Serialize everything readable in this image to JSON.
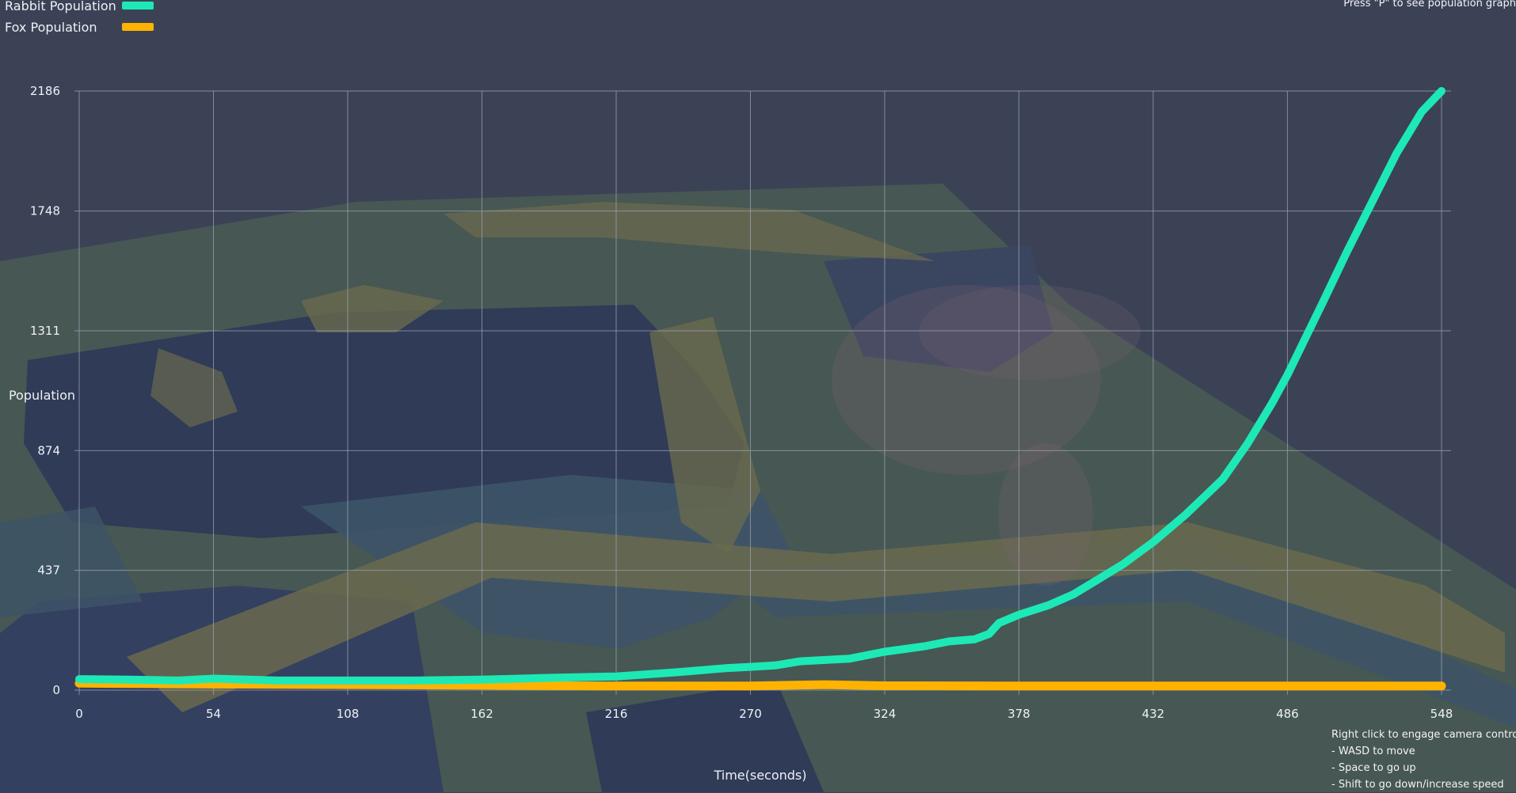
{
  "legend": [
    {
      "label": "Rabbit Population",
      "color": "#1de9b6"
    },
    {
      "label": "Fox Population",
      "color": "#ffb300"
    }
  ],
  "hint_top": "Press \"P\" to see population graph",
  "camera_help": [
    "Right click to engage camera controls",
    "- WASD to move",
    "- Space to go up",
    "- Shift to go down/increase speed"
  ],
  "chart_data": {
    "type": "line",
    "title": "",
    "xlabel": "Time(seconds)",
    "ylabel": "Population",
    "xlim": [
      0,
      548
    ],
    "ylim": [
      0,
      2186
    ],
    "x_ticks": [
      0,
      54,
      108,
      162,
      216,
      270,
      324,
      378,
      432,
      486,
      548
    ],
    "y_ticks": [
      0,
      437,
      874,
      1311,
      1748,
      2186
    ],
    "grid": true,
    "legend_position": "top-left",
    "series": [
      {
        "name": "Rabbit Population",
        "color": "#1de9b6",
        "x": [
          0,
          20,
          40,
          54,
          80,
          108,
          135,
          162,
          190,
          216,
          240,
          260,
          270,
          280,
          290,
          310,
          324,
          340,
          350,
          360,
          366,
          370,
          378,
          390,
          400,
          410,
          420,
          432,
          445,
          460,
          470,
          480,
          486,
          500,
          510,
          520,
          530,
          540,
          548
        ],
        "y": [
          40,
          38,
          35,
          42,
          35,
          35,
          35,
          38,
          45,
          50,
          65,
          80,
          85,
          90,
          105,
          115,
          140,
          160,
          178,
          185,
          205,
          245,
          275,
          310,
          350,
          405,
          460,
          540,
          640,
          770,
          900,
          1050,
          1150,
          1410,
          1600,
          1780,
          1960,
          2110,
          2186
        ]
      },
      {
        "name": "Fox Population",
        "color": "#ffb300",
        "x": [
          0,
          54,
          108,
          162,
          216,
          270,
          300,
          324,
          378,
          432,
          486,
          548
        ],
        "y": [
          25,
          22,
          20,
          18,
          15,
          15,
          20,
          16,
          15,
          15,
          15,
          15
        ]
      }
    ]
  }
}
